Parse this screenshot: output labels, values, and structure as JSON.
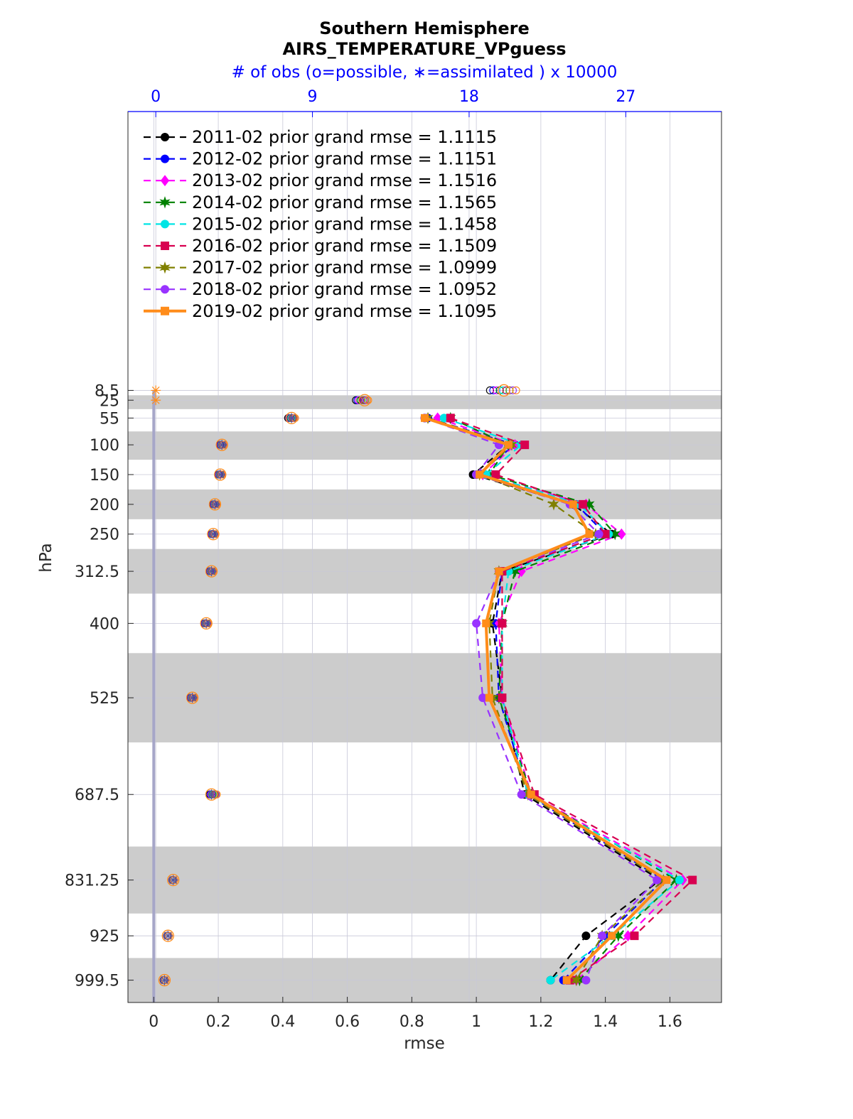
{
  "chart_data": {
    "type": "line",
    "title": "Southern Hemisphere",
    "subtitle": "AIRS_TEMPERATURE_VPguess",
    "top_axis_label": "# of obs (o=possible, ∗=assimilated ) x 10000",
    "xlabel": "rmse",
    "ylabel": "hPa",
    "xlim": [
      -0.08,
      1.76
    ],
    "x_ticks": [
      "0",
      "0.2",
      "0.4",
      "0.6",
      "0.8",
      "1",
      "1.2",
      "1.4",
      "1.6"
    ],
    "x_tick_values": [
      0,
      0.2,
      0.4,
      0.6,
      0.8,
      1.0,
      1.2,
      1.4,
      1.6
    ],
    "top_ticks": [
      "0",
      "9",
      "18",
      "27"
    ],
    "top_tick_values": [
      0,
      9,
      18,
      27
    ],
    "top_range": [
      -1.6,
      32.5
    ],
    "y_ticks": [
      "8.5",
      "25",
      "55",
      "100",
      "150",
      "200",
      "250",
      "312.5",
      "400",
      "525",
      "687.5",
      "831.25",
      "925",
      "999.5"
    ],
    "levels": [
      8.5,
      25,
      55,
      100,
      150,
      200,
      250,
      312.5,
      400,
      525,
      687.5,
      831.25,
      925,
      999.5
    ],
    "y_range": [
      -460,
      1037
    ],
    "shaded_bands": [
      [
        16.75,
        40
      ],
      [
        77.5,
        125
      ],
      [
        175,
        225
      ],
      [
        275,
        350
      ],
      [
        450,
        600
      ],
      [
        775,
        887.5
      ],
      [
        962.25,
        1037
      ]
    ],
    "grid": true,
    "legend_position": "top-left",
    "series": [
      {
        "name": "2011-02 prior grand rmse = 1.1115",
        "color": "#000000",
        "marker": "circle",
        "values": [
          null,
          null,
          0.84,
          1.1,
          0.99,
          1.3,
          1.42,
          1.08,
          1.05,
          1.08,
          1.15,
          1.57,
          1.34,
          1.23
        ]
      },
      {
        "name": "2012-02 prior grand rmse = 1.1151",
        "color": "#0000ff",
        "marker": "circle",
        "values": [
          null,
          null,
          0.85,
          1.12,
          1.0,
          1.31,
          1.4,
          1.08,
          1.06,
          1.07,
          1.16,
          1.58,
          1.4,
          1.27
        ]
      },
      {
        "name": "2013-02 prior grand rmse = 1.1516",
        "color": "#ff00ff",
        "marker": "diamond",
        "values": [
          null,
          null,
          0.88,
          1.12,
          1.02,
          1.34,
          1.45,
          1.14,
          1.07,
          1.08,
          1.17,
          1.64,
          1.47,
          1.31
        ]
      },
      {
        "name": "2014-02 prior grand rmse = 1.1565",
        "color": "#008000",
        "marker": "hexagram",
        "values": [
          null,
          null,
          0.92,
          1.1,
          1.04,
          1.35,
          1.43,
          1.12,
          1.08,
          1.07,
          1.17,
          1.62,
          1.44,
          1.32
        ]
      },
      {
        "name": "2015-02 prior grand rmse = 1.1458",
        "color": "#00e5e5",
        "marker": "circle",
        "values": [
          null,
          null,
          0.9,
          1.14,
          1.03,
          1.32,
          1.41,
          1.1,
          1.08,
          1.08,
          1.16,
          1.63,
          1.42,
          1.23
        ]
      },
      {
        "name": "2016-02 prior grand rmse = 1.1509",
        "color": "#d80050",
        "marker": "square",
        "values": [
          null,
          null,
          0.92,
          1.15,
          1.06,
          1.33,
          1.4,
          1.08,
          1.08,
          1.08,
          1.18,
          1.67,
          1.49,
          1.29
        ]
      },
      {
        "name": "2017-02 prior grand rmse = 1.0999",
        "color": "#808000",
        "marker": "hexagram",
        "values": [
          null,
          null,
          0.85,
          1.11,
          1.01,
          1.24,
          1.37,
          1.07,
          1.04,
          1.05,
          1.16,
          1.58,
          1.39,
          1.31
        ]
      },
      {
        "name": "2018-02 prior grand rmse = 1.0952",
        "color": "#9933ff",
        "marker": "circle",
        "values": [
          null,
          null,
          0.84,
          1.07,
          1.0,
          1.29,
          1.38,
          1.07,
          1.0,
          1.02,
          1.14,
          1.56,
          1.39,
          1.34
        ]
      },
      {
        "name": "2019-02 prior grand rmse = 1.1095",
        "color": "#ff8c1a",
        "marker": "square",
        "values": [
          null,
          null,
          0.84,
          1.1,
          1.01,
          1.3,
          1.35,
          1.07,
          1.03,
          1.04,
          1.17,
          1.59,
          1.42,
          1.28
        ]
      }
    ],
    "obs_possible": [
      20.0,
      12.0,
      7.8,
      3.8,
      3.7,
      3.4,
      3.3,
      3.2,
      2.9,
      2.1,
      3.2,
      1.0,
      0.7,
      0.5
    ],
    "obs_assimilated": [
      0,
      0,
      7.8,
      3.8,
      3.7,
      3.4,
      3.3,
      3.2,
      2.9,
      2.1,
      3.2,
      1.0,
      0.7,
      0.5
    ],
    "obs_possible_spread": [
      [
        19.2,
        20.7
      ],
      [
        11.5,
        12.2
      ],
      [
        7.6,
        8.0
      ],
      [
        3.7,
        3.9
      ],
      [
        3.6,
        3.8
      ],
      [
        3.3,
        3.5
      ],
      [
        3.2,
        3.4
      ],
      [
        3.1,
        3.3
      ],
      [
        2.8,
        3.0
      ],
      [
        2.0,
        2.2
      ],
      [
        3.1,
        3.5
      ],
      [
        0.95,
        1.05
      ],
      [
        0.65,
        0.75
      ],
      [
        0.45,
        0.55
      ]
    ],
    "colors": {
      "axis": "#262626",
      "grid": "#c8c8d8",
      "band": "#cccccc",
      "top_axis": "#0000ff",
      "zero_line": "#a6a6c8"
    }
  }
}
